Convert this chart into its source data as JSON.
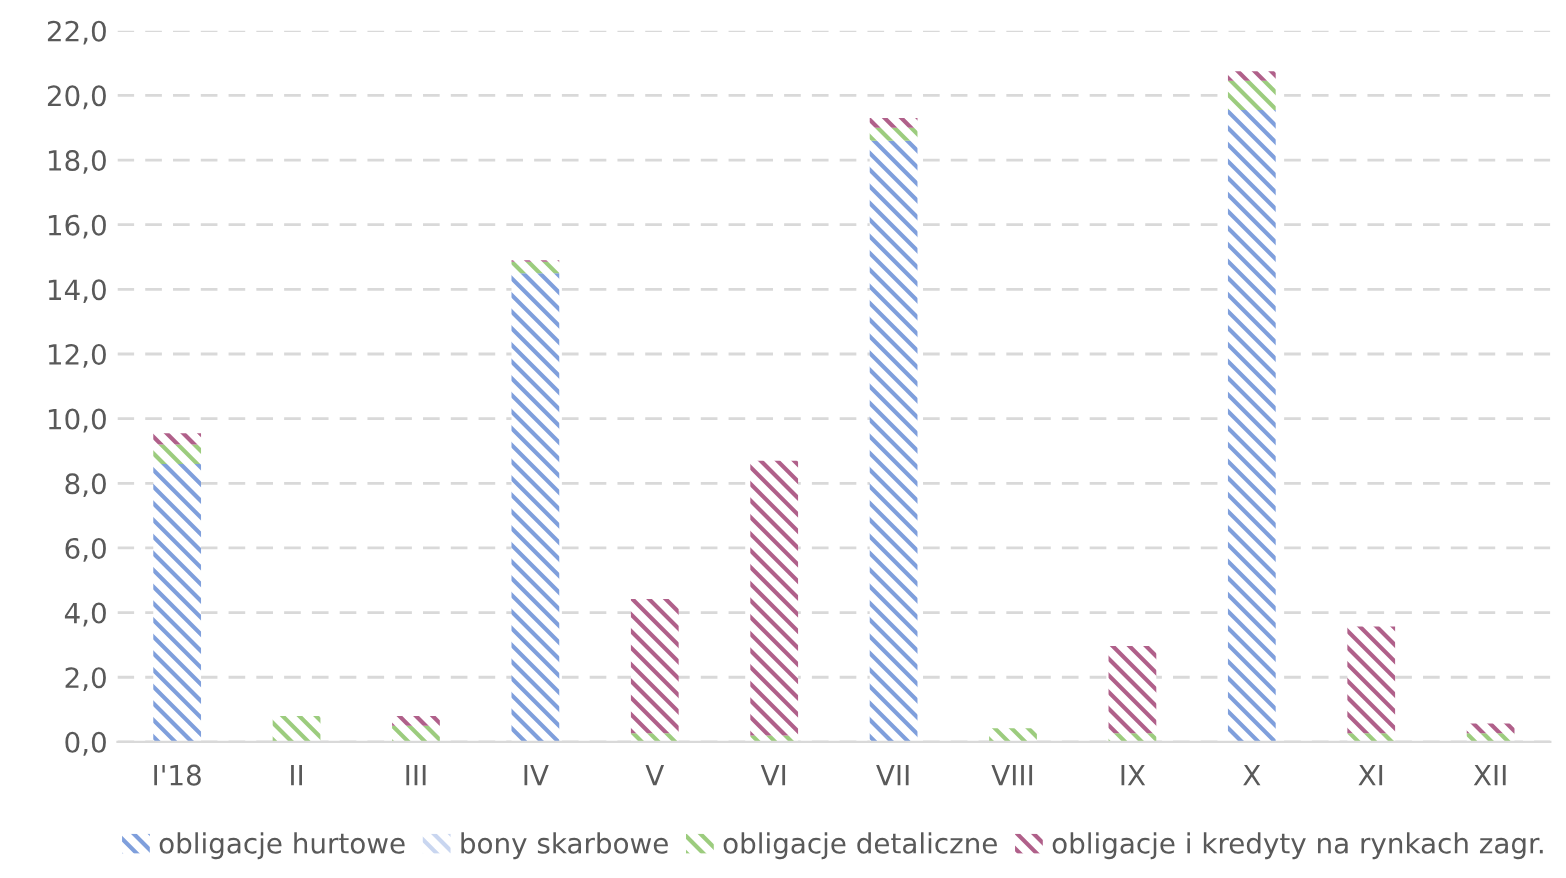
{
  "chart_data": {
    "type": "bar",
    "stacked": true,
    "categories": [
      "I'18",
      "II",
      "III",
      "IV",
      "V",
      "VI",
      "VII",
      "VIII",
      "IX",
      "X",
      "XI",
      "XII"
    ],
    "series": [
      {
        "name": "obligacje hurtowe",
        "color": "#7f9fdc",
        "values": [
          8.6,
          0,
          0,
          14.5,
          0,
          0,
          18.6,
          0,
          0,
          19.55,
          0,
          0
        ]
      },
      {
        "name": "bony skarbowe",
        "color": "#c9d6f0",
        "values": [
          null,
          null,
          null,
          null,
          null,
          null,
          null,
          null,
          null,
          null,
          null,
          null
        ]
      },
      {
        "name": "obligacje detaliczne",
        "color": "#9ccc7e",
        "values": [
          0.6,
          0.8,
          0.5,
          0.35,
          0.27,
          0.2,
          0.4,
          0.42,
          0.27,
          0.9,
          0.27,
          0.27
        ]
      },
      {
        "name": "obligacje i kredyty na rynkach zagr.",
        "color": "#b0608a",
        "values": [
          0.35,
          0,
          0.3,
          0.05,
          4.15,
          8.5,
          0.3,
          0,
          2.7,
          0.3,
          3.3,
          0.3
        ]
      }
    ],
    "ylim": [
      0,
      22
    ],
    "yticks": [
      {
        "value": 0,
        "label": "0,0"
      },
      {
        "value": 2,
        "label": "2,0"
      },
      {
        "value": 4,
        "label": "4,0"
      },
      {
        "value": 6,
        "label": "6,0"
      },
      {
        "value": 8,
        "label": "8,0"
      },
      {
        "value": 10,
        "label": "10,0"
      },
      {
        "value": 12,
        "label": "12,0"
      },
      {
        "value": 14,
        "label": "14,0"
      },
      {
        "value": 16,
        "label": "16,0"
      },
      {
        "value": 18,
        "label": "18,0"
      },
      {
        "value": 20,
        "label": "20,0"
      },
      {
        "value": 22,
        "label": "22,0"
      }
    ],
    "grid": "y",
    "legend": "bottom"
  }
}
